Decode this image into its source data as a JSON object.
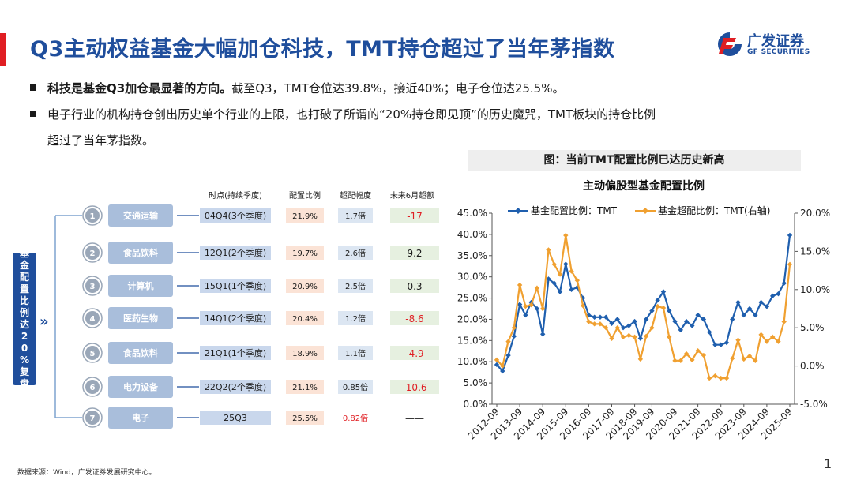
{
  "title": "Q3主动权益基金大幅加仓科技，TMT持仓超过了当年茅指数",
  "logo": {
    "cn": "广发证券",
    "en": "GF SECURITIES"
  },
  "bullets": [
    {
      "bold": "科技是基金Q3加仓最显著的方向。",
      "text": "截至Q3，TMT仓位达39.8%，接近40%；电子仓位达25.5%。"
    },
    {
      "bold": "",
      "text": "电子行业的机构持仓创出历史单个行业的上限，也打破了所谓的“20%持仓即见顶”的历史魔咒，TMT板块的持仓比例",
      "text2": "超过了当年茅指数。"
    }
  ],
  "left_panel": {
    "vertical_label": "基金配置比例达20%复盘",
    "arrows": "»",
    "headers": [
      "时点(持续季度)",
      "配置比例",
      "超配幅度",
      "未来6月超额"
    ],
    "rows": [
      {
        "num": "1",
        "industry": "交通运输",
        "period": "04Q4(3个季度)",
        "ratio": "21.9%",
        "over": "1.7倍",
        "excess": "-17",
        "excess_sign": "neg"
      },
      {
        "num": "2",
        "industry": "食品饮料",
        "period": "12Q1(2个季度)",
        "ratio": "19.7%",
        "over": "2.6倍",
        "excess": "9.2",
        "excess_sign": "pos"
      },
      {
        "num": "3",
        "industry": "计算机",
        "period": "15Q1(1个季度)",
        "ratio": "20.9%",
        "over": "2.5倍",
        "excess": "0.3",
        "excess_sign": "pos"
      },
      {
        "num": "4",
        "industry": "医药生物",
        "period": "14Q1(2个季度)",
        "ratio": "20.4%",
        "over": "1.2倍",
        "excess": "-8.6",
        "excess_sign": "neg"
      },
      {
        "num": "5",
        "industry": "食品饮料",
        "period": "21Q1(1个季度)",
        "ratio": "18.9%",
        "over": "1.1倍",
        "excess": "-4.9",
        "excess_sign": "neg"
      },
      {
        "num": "6",
        "industry": "电力设备",
        "period": "22Q2(2个季度)",
        "ratio": "21.1%",
        "over": "0.85倍",
        "excess": "-10.6",
        "excess_sign": "neg"
      },
      {
        "num": "7",
        "industry": "电子",
        "period": "25Q3",
        "ratio": "25.5%",
        "over": "0.82倍",
        "excess": "——",
        "excess_sign": "none"
      }
    ]
  },
  "chart_caption": "图：当前TMT配置比例已达历史新高",
  "colors": {
    "blue": "#1f5fae",
    "orange": "#f0a030",
    "brand": "#1f4e9c",
    "red": "#e01e23"
  },
  "chart_data": {
    "type": "line",
    "title": "主动偏股型基金配置比例",
    "x_labels": [
      "2012-09",
      "2013-09",
      "2014-09",
      "2015-09",
      "2016-09",
      "2017-09",
      "2018-09",
      "2019-09",
      "2020-09",
      "2021-09",
      "2022-09",
      "2023-09",
      "2024-09",
      "2025-09"
    ],
    "y_left_ticks": [
      "0.0%",
      "5.0%",
      "10.0%",
      "15.0%",
      "20.0%",
      "25.0%",
      "30.0%",
      "35.0%",
      "40.0%",
      "45.0%"
    ],
    "y_right_ticks": [
      "-5.0%",
      "0.0%",
      "5.0%",
      "10.0%",
      "15.0%",
      "20.0%"
    ],
    "ylim_left": [
      0,
      45
    ],
    "ylim_right": [
      -5,
      20
    ],
    "series": [
      {
        "name": "基金配置比例：TMT",
        "axis": "left",
        "color": "#1f5fae",
        "values": [
          9.3,
          7.8,
          11.5,
          16.0,
          23.5,
          21.0,
          24.0,
          22.5,
          16.5,
          29.5,
          28.5,
          26.5,
          33.0,
          27.0,
          27.5,
          25.0,
          21.0,
          20.5,
          20.5,
          20.5,
          19.0,
          20.0,
          18.0,
          18.5,
          19.5,
          15.5,
          20.0,
          22.0,
          24.5,
          26.5,
          22.0,
          19.5,
          17.5,
          19.5,
          18.5,
          21.0,
          20.0,
          17.0,
          14.0,
          14.0,
          14.5,
          20.0,
          24.0,
          21.0,
          22.5,
          21.0,
          24.0,
          23.0,
          25.5,
          26.0,
          28.5,
          39.8
        ]
      },
      {
        "name": "基金超配比例：TMT(右轴)",
        "axis": "right",
        "color": "#f0a030",
        "values": [
          0.8,
          0.0,
          3.2,
          5.0,
          10.6,
          7.8,
          8.0,
          10.2,
          7.5,
          15.2,
          13.3,
          12.0,
          17.1,
          12.4,
          11.2,
          7.9,
          5.8,
          5.5,
          5.5,
          5.0,
          3.6,
          5.0,
          3.8,
          4.0,
          3.8,
          0.9,
          3.9,
          5.0,
          7.8,
          7.6,
          3.8,
          0.7,
          0.7,
          1.6,
          0.8,
          2.0,
          1.4,
          -1.6,
          -1.3,
          -1.6,
          -1.6,
          1.0,
          3.4,
          0.9,
          1.3,
          0.7,
          4.1,
          3.2,
          3.8,
          3.2,
          5.8,
          13.3
        ]
      }
    ]
  },
  "footer": "数据来源：Wind，广发证券发展研究中心。",
  "page_number": "1"
}
